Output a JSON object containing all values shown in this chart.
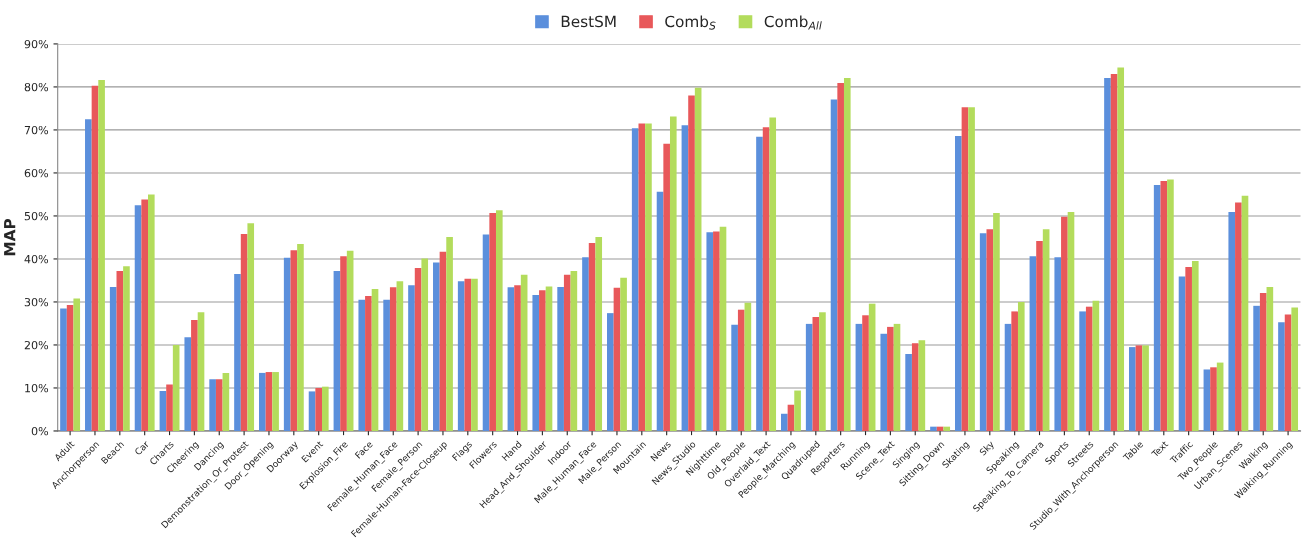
{
  "chart_data": {
    "type": "bar",
    "ylabel": "MAP",
    "categories": [
      "Adult",
      "Anchorperson",
      "Beach",
      "Car",
      "Charts",
      "Cheering",
      "Dancing",
      "Demonstration_Or_Protest",
      "Door_Opening",
      "Doorway",
      "Event",
      "Explosion_Fire",
      "Face",
      "Female_Human_Face",
      "Female_Person",
      "Female-Human-Face-Closeup",
      "Flags",
      "Flowers",
      "Hand",
      "Head_And_Shoulder",
      "Indoor",
      "Male_Human_Face",
      "Male_Person",
      "Mountain",
      "News",
      "News_Studio",
      "Nighttime",
      "Old_People",
      "Overlaid_Text",
      "People_Marching",
      "Quadruped",
      "Reporters",
      "Running",
      "Scene_Text",
      "Singing",
      "Sitting_Down",
      "Skating",
      "Sky",
      "Speaking",
      "Speaking_To_Camera",
      "Sports",
      "Streets",
      "Studio_With_Anchorperson",
      "Table",
      "Text",
      "Traffic",
      "Two_People",
      "Urban_Scenes",
      "Walking",
      "Walking_Running"
    ],
    "series": [
      {
        "name": "BestSM",
        "color": "#5b8fdc",
        "values": [
          28.5,
          72.5,
          33.5,
          52.5,
          9.3,
          21.8,
          12,
          36.5,
          13.5,
          40.3,
          9.2,
          37.2,
          30.5,
          30.5,
          33.9,
          39.2,
          34.8,
          45.7,
          33.4,
          31.6,
          33.5,
          40.4,
          27.4,
          70.4,
          55.6,
          71.1,
          46.2,
          24.7,
          68.4,
          4,
          24.9,
          77.1,
          24.9,
          22.6,
          17.9,
          1,
          68.6,
          46,
          24.9,
          40.6,
          40.4,
          27.8,
          82.1,
          19.5,
          57.2,
          35.9,
          14.3,
          50.9,
          29.1,
          25.3
        ]
      },
      {
        "name": "Comb$_{S}$",
        "color": "#e8585a",
        "values": [
          29.3,
          80.3,
          37.2,
          53.8,
          10.8,
          25.8,
          12,
          45.8,
          13.7,
          42,
          10,
          40.6,
          31.4,
          33.4,
          37.9,
          41.7,
          35.4,
          50.7,
          33.9,
          32.7,
          36.3,
          43.7,
          33.3,
          71.5,
          66.8,
          78,
          46.4,
          28.2,
          70.6,
          6.1,
          26.5,
          80.9,
          26.9,
          24.2,
          20.4,
          1,
          75.3,
          46.9,
          27.8,
          44.2,
          49.8,
          28.9,
          83,
          19.9,
          58.1,
          38.1,
          14.8,
          53.1,
          32.1,
          27.1
        ]
      },
      {
        "name": "Comb$_{All}$",
        "color": "#b3dc5c",
        "values": [
          30.8,
          81.6,
          38.3,
          55,
          20,
          27.6,
          13.5,
          48.3,
          13.7,
          43.5,
          10.3,
          41.9,
          33,
          34.8,
          40.1,
          45.1,
          35.4,
          51.3,
          36.3,
          33.6,
          37.2,
          45.1,
          35.6,
          71.5,
          73.1,
          79.8,
          47.5,
          29.8,
          72.9,
          9.4,
          27.6,
          82.1,
          29.6,
          24.9,
          21.1,
          1,
          75.3,
          50.7,
          30,
          46.9,
          50.9,
          30.3,
          84.5,
          19.9,
          58.5,
          39.5,
          15.9,
          54.7,
          33.5,
          28.7
        ]
      }
    ],
    "ylim": [
      0,
      90
    ],
    "yticks": [
      {
        "value": 0,
        "label": "0%"
      },
      {
        "value": 10,
        "label": "10%"
      },
      {
        "value": 20,
        "label": "20%"
      },
      {
        "value": 30,
        "label": "30%"
      },
      {
        "value": 40,
        "label": "40%"
      },
      {
        "value": 50,
        "label": "50%"
      },
      {
        "value": 60,
        "label": "60%"
      },
      {
        "value": 70,
        "label": "70%"
      },
      {
        "value": 80,
        "label": "80%"
      },
      {
        "value": 90,
        "label": "90%"
      }
    ],
    "grid": "y",
    "legend": "top"
  }
}
